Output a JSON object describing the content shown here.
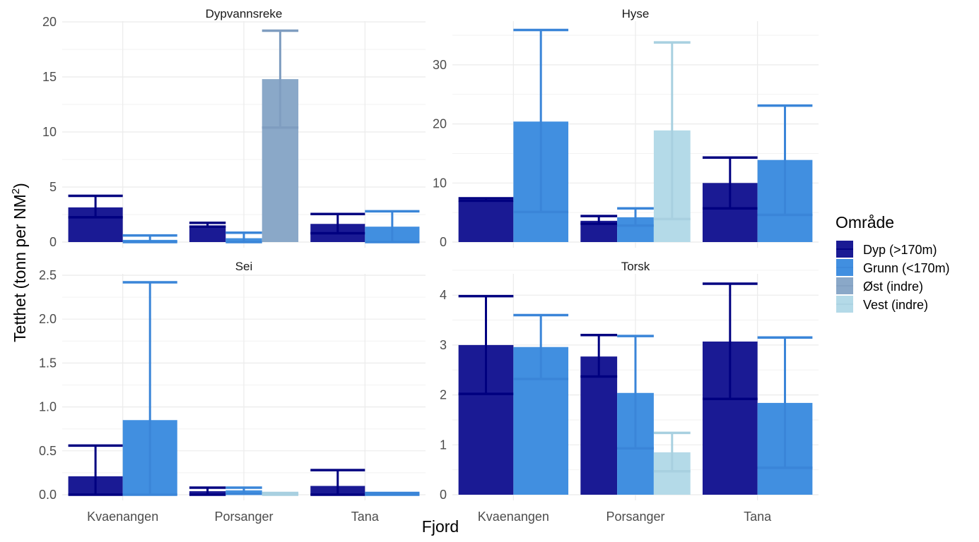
{
  "chart_data": {
    "type": "bar",
    "xlabel": "Fjord",
    "ylabel": "Tetthet (tonn per NM",
    "ylabel_superscript": "2",
    "ylabel_suffix": ")",
    "categories": [
      "Kvaenangen",
      "Porsanger",
      "Tana"
    ],
    "legend": {
      "title": "Område",
      "position": "right",
      "entries": [
        {
          "key": "dyp",
          "label": "Dyp (>170m)",
          "color": "#1a1a94",
          "err_color": "#000080"
        },
        {
          "key": "grunn",
          "label": "Grunn (<170m)",
          "color": "#418fe0",
          "err_color": "#3a85d8"
        },
        {
          "key": "ost",
          "label": "Øst (indre)",
          "color": "#8aa8c8",
          "err_color": "#7f9dc0"
        },
        {
          "key": "vest",
          "label": "Vest (indre)",
          "color": "#b4dae8",
          "err_color": "#a8d0e0"
        }
      ]
    },
    "grid": true,
    "panels": [
      {
        "title": "Dypvannsreke",
        "ylim": [
          0,
          20
        ],
        "yticks": [
          "0",
          "5",
          "10",
          "15",
          "20"
        ],
        "ytick_values": [
          0,
          5,
          10,
          15,
          20
        ],
        "groups": [
          {
            "category": "Kvaenangen",
            "bars": [
              {
                "series": "dyp",
                "value": 3.15,
                "lower": 2.25,
                "upper": 4.2
              },
              {
                "series": "grunn",
                "value": 0.2,
                "lower": 0.0,
                "upper": 0.6
              }
            ]
          },
          {
            "category": "Porsanger",
            "bars": [
              {
                "series": "dyp",
                "value": 1.5,
                "lower": 1.4,
                "upper": 1.75
              },
              {
                "series": "grunn",
                "value": 0.35,
                "lower": 0.0,
                "upper": 0.85
              },
              {
                "series": "ost",
                "value": 14.8,
                "lower": 10.4,
                "upper": 19.2
              }
            ]
          },
          {
            "category": "Tana",
            "bars": [
              {
                "series": "dyp",
                "value": 1.65,
                "lower": 0.8,
                "upper": 2.55
              },
              {
                "series": "grunn",
                "value": 1.4,
                "lower": 0.0,
                "upper": 2.8
              }
            ]
          }
        ]
      },
      {
        "title": "Hyse",
        "ylim": [
          0,
          36.5
        ],
        "yticks": [
          "0",
          "10",
          "20",
          "30"
        ],
        "ytick_values": [
          0,
          10,
          20,
          30
        ],
        "groups": [
          {
            "category": "Kvaenangen",
            "bars": [
              {
                "series": "dyp",
                "value": 6.9,
                "lower": 7.0,
                "upper": 7.4
              },
              {
                "series": "grunn",
                "value": 20.4,
                "lower": 5.1,
                "upper": 35.9
              }
            ]
          },
          {
            "category": "Porsanger",
            "bars": [
              {
                "series": "dyp",
                "value": 3.6,
                "lower": 3.1,
                "upper": 4.4
              },
              {
                "series": "grunn",
                "value": 4.2,
                "lower": 2.8,
                "upper": 5.7
              },
              {
                "series": "vest",
                "value": 18.9,
                "lower": 3.9,
                "upper": 33.8
              }
            ]
          },
          {
            "category": "Tana",
            "bars": [
              {
                "series": "dyp",
                "value": 10.0,
                "lower": 5.7,
                "upper": 14.3
              },
              {
                "series": "grunn",
                "value": 13.9,
                "lower": 4.6,
                "upper": 23.1
              }
            ]
          }
        ]
      },
      {
        "title": "Sei",
        "ylim": [
          0,
          2.5
        ],
        "yticks": [
          "0.0",
          "0.5",
          "1.0",
          "1.5",
          "2.0",
          "2.5"
        ],
        "ytick_values": [
          0,
          0.5,
          1.0,
          1.5,
          2.0,
          2.5
        ],
        "groups": [
          {
            "category": "Kvaenangen",
            "bars": [
              {
                "series": "dyp",
                "value": 0.21,
                "lower": 0.0,
                "upper": 0.56
              },
              {
                "series": "grunn",
                "value": 0.85,
                "lower": 0.0,
                "upper": 2.42
              }
            ]
          },
          {
            "category": "Porsanger",
            "bars": [
              {
                "series": "dyp",
                "value": 0.04,
                "lower": 0.0,
                "upper": 0.08
              },
              {
                "series": "grunn",
                "value": 0.05,
                "lower": 0.01,
                "upper": 0.08
              },
              {
                "series": "vest",
                "value": 0.02,
                "lower": 0.0,
                "upper": 0.02
              }
            ]
          },
          {
            "category": "Tana",
            "bars": [
              {
                "series": "dyp",
                "value": 0.1,
                "lower": 0.0,
                "upper": 0.28
              },
              {
                "series": "grunn",
                "value": 0.02,
                "lower": 0.0,
                "upper": 0.02
              }
            ]
          }
        ]
      },
      {
        "title": "Torsk",
        "ylim": [
          0,
          4.3
        ],
        "yticks": [
          "0",
          "1",
          "2",
          "3",
          "4"
        ],
        "ytick_values": [
          0,
          1,
          2,
          3,
          4
        ],
        "groups": [
          {
            "category": "Kvaenangen",
            "bars": [
              {
                "series": "dyp",
                "value": 3.0,
                "lower": 2.02,
                "upper": 3.98
              },
              {
                "series": "grunn",
                "value": 2.96,
                "lower": 2.32,
                "upper": 3.6
              }
            ]
          },
          {
            "category": "Porsanger",
            "bars": [
              {
                "series": "dyp",
                "value": 2.77,
                "lower": 2.37,
                "upper": 3.2
              },
              {
                "series": "grunn",
                "value": 2.04,
                "lower": 0.93,
                "upper": 3.18
              },
              {
                "series": "vest",
                "value": 0.85,
                "lower": 0.47,
                "upper": 1.24
              }
            ]
          },
          {
            "category": "Tana",
            "bars": [
              {
                "series": "dyp",
                "value": 3.07,
                "lower": 1.92,
                "upper": 4.23
              },
              {
                "series": "grunn",
                "value": 1.84,
                "lower": 0.54,
                "upper": 3.15
              }
            ]
          }
        ]
      }
    ]
  }
}
